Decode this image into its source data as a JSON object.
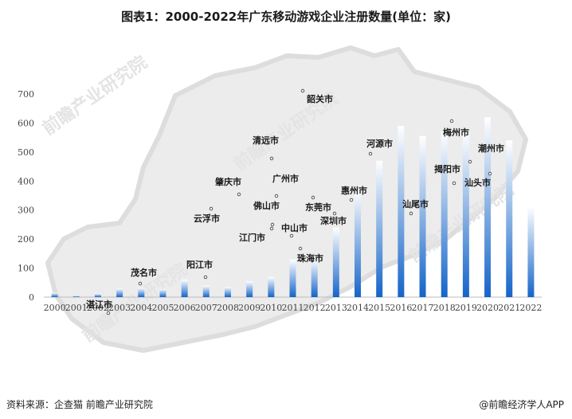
{
  "title": "图表1：2000-2022年广东移动游戏企业注册数量(单位：家)",
  "footer": {
    "source": "资料来源：企查猫 前瞻产业研究院",
    "brand": "@前瞻经济学人APP"
  },
  "watermark_text": "前瞻产业研究院",
  "colors": {
    "bar_top": "#ffffff",
    "bar_bottom": "#1464c8",
    "axis": "#bbbbbb",
    "map": "#e6e6e6"
  },
  "map_labels": [
    "韶关市",
    "清远市",
    "肇庆市",
    "广州市",
    "云浮市",
    "佛山市",
    "东莞市",
    "惠州市",
    "河源市",
    "梅州市",
    "潮州市",
    "揭阳市",
    "汕头市",
    "汕尾市",
    "江门市",
    "中山市",
    "深圳市",
    "阳江市",
    "珠海市",
    "茂名市",
    "湛江市"
  ],
  "chart_data": {
    "type": "bar",
    "title": "图表1：2000-2022年广东移动游戏企业注册数量(单位：家)",
    "categories": [
      "2000",
      "2001",
      "2002",
      "2003",
      "2004",
      "2005",
      "2006",
      "2007",
      "2008",
      "2009",
      "2010",
      "2011",
      "2012",
      "2013",
      "2014",
      "2015",
      "2016",
      "2017",
      "2018",
      "2019",
      "2020",
      "2021",
      "2022"
    ],
    "values": [
      15,
      5,
      12,
      30,
      32,
      28,
      60,
      40,
      35,
      55,
      70,
      130,
      130,
      240,
      370,
      470,
      590,
      555,
      570,
      570,
      620,
      540,
      310
    ],
    "ylim": [
      0,
      700
    ],
    "yticks": [
      0,
      100,
      200,
      300,
      400,
      500,
      600,
      700
    ],
    "grid": false,
    "legend": "none",
    "xlabel": "",
    "ylabel": ""
  }
}
